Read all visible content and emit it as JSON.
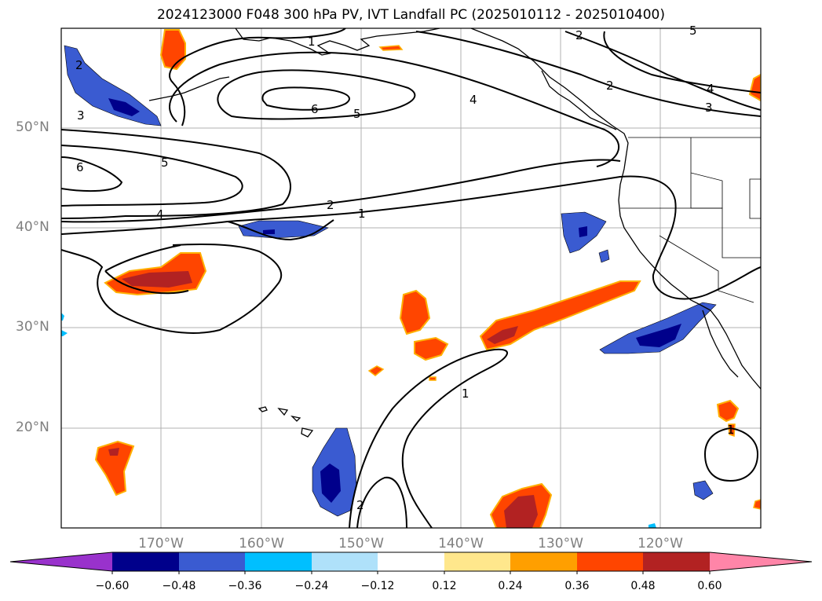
{
  "title": "2024123000 F048 300 hPa PV, IVT Landfall PC (2025010112 - 2025010400)",
  "map": {
    "lat_ticks": [
      "50°N",
      "40°N",
      "30°N",
      "20°N"
    ],
    "lon_ticks": [
      "170°W",
      "160°W",
      "150°W",
      "140°W",
      "130°W",
      "120°W"
    ],
    "contour_levels": [
      "1",
      "2",
      "3",
      "4",
      "5",
      "6"
    ],
    "contour_labels": [
      "1",
      "2",
      "2",
      "4",
      "4",
      "3",
      "6",
      "5",
      "2",
      "3",
      "6",
      "5",
      "2",
      "1",
      "4",
      "1",
      "2",
      "1",
      "5"
    ],
    "colors": {
      "neg_strong": "#00008b",
      "neg_med": "#3a5bd1",
      "neg_light": "#00bfff",
      "pos_light": "#ff9f00",
      "pos_med": "#ff4500",
      "pos_strong": "#b22222"
    }
  },
  "colorbar": {
    "ticks": [
      "−0.60",
      "−0.48",
      "−0.36",
      "−0.24",
      "−0.12",
      "0.12",
      "0.24",
      "0.36",
      "0.48",
      "0.60"
    ],
    "colors": [
      "#9932cc",
      "#00008b",
      "#3a5bd1",
      "#00bfff",
      "#afe1fa",
      "#ffffff",
      "#ffe78c",
      "#ff9f00",
      "#ff4500",
      "#b22222",
      "#ff85a8"
    ]
  }
}
